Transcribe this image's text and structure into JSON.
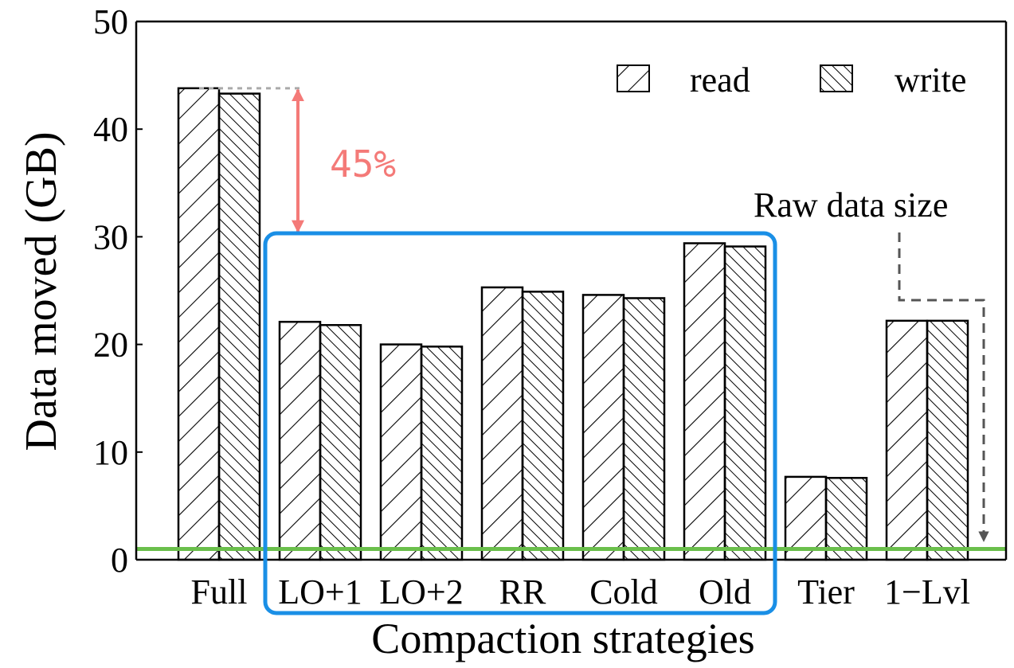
{
  "chart_data": {
    "type": "bar",
    "xlabel": "Compaction strategies",
    "ylabel": "Data moved (GB)",
    "ylim": [
      0,
      50
    ],
    "yticks": [
      "0",
      "10",
      "20",
      "30",
      "40",
      "50"
    ],
    "grid": false,
    "legend_position": "top-right",
    "categories": [
      "Full",
      "LO+1",
      "LO+2",
      "RR",
      "Cold",
      "Old",
      "Tier",
      "1−Lvl"
    ],
    "series": [
      {
        "name": "read",
        "values": [
          43.8,
          22.1,
          20.0,
          25.3,
          24.6,
          29.4,
          7.7,
          22.2
        ]
      },
      {
        "name": "write",
        "values": [
          43.3,
          21.8,
          19.8,
          24.9,
          24.3,
          29.1,
          7.6,
          22.2
        ]
      }
    ],
    "reference_line": {
      "label": "Raw data size",
      "value": 1.0,
      "color": "#6abf4b"
    },
    "annotations": {
      "percent_label": "45%",
      "percent_color": "#f47a78",
      "highlight_box_color": "#1a8fe6"
    }
  }
}
